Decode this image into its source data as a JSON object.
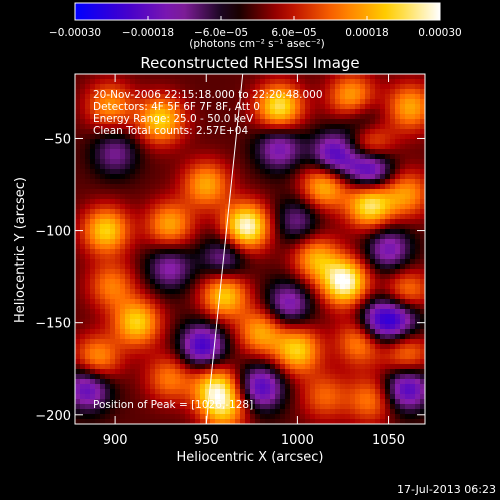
{
  "chart_data": {
    "type": "heatmap",
    "title": "Reconstructed RHESSI Image",
    "xlabel": "Heliocentric X (arcsec)",
    "ylabel": "Heliocentric Y (arcsec)",
    "xlim": [
      878,
      1070
    ],
    "ylim": [
      -205,
      -15
    ],
    "x_ticks": [
      {
        "value": 900,
        "label": "900"
      },
      {
        "value": 950,
        "label": "950"
      },
      {
        "value": 1000,
        "label": "1000"
      },
      {
        "value": 1050,
        "label": "1050"
      }
    ],
    "y_ticks": [
      {
        "value": -50,
        "label": "−50"
      },
      {
        "value": -100,
        "label": "−100"
      },
      {
        "value": -150,
        "label": "−150"
      },
      {
        "value": -200,
        "label": "−200"
      }
    ],
    "colorbar": {
      "min": -0.0003,
      "max": 0.0003,
      "units_label": "(photons cm⁻² s⁻¹ asec⁻²)",
      "ticks": [
        {
          "value": -0.0003,
          "label": "−0.00030"
        },
        {
          "value": -0.00018,
          "label": "−0.00018"
        },
        {
          "value": -6e-05,
          "label": "−6.0e−05"
        },
        {
          "value": 6e-05,
          "label": "6.0e−05"
        },
        {
          "value": 0.00018,
          "label": "0.00018"
        },
        {
          "value": 0.0003,
          "label": "0.00030"
        }
      ],
      "colors": [
        "#0000ff",
        "#4400cc",
        "#8a1fa8",
        "#000000",
        "#b00000",
        "#ff6a00",
        "#ffd000",
        "#ffffff"
      ]
    },
    "annotations": [
      "20-Nov-2006 22:15:18.000 to 22:20:48.000",
      "Detectors: 4F 5F 6F 7F 8F, Att 0",
      "Energy Range: 25.0 - 50.0 keV",
      "Clean     Total counts: 2.57E+04"
    ],
    "peak_label": "Position of Peak = [1026,-128]",
    "limb_line": [
      [
        950,
        -205
      ],
      [
        970,
        -15
      ]
    ],
    "blobs": [
      {
        "x": 897,
        "y": -32,
        "v": 0.00016
      },
      {
        "x": 925,
        "y": -40,
        "v": 0.00022
      },
      {
        "x": 990,
        "y": -33,
        "v": 0.00025
      },
      {
        "x": 1030,
        "y": -28,
        "v": 0.0002
      },
      {
        "x": 1062,
        "y": -33,
        "v": 0.00018
      },
      {
        "x": 1040,
        "y": -55,
        "v": 0.00024
      },
      {
        "x": 1015,
        "y": -75,
        "v": 0.00022
      },
      {
        "x": 1040,
        "y": -86,
        "v": 0.00026
      },
      {
        "x": 1060,
        "y": -80,
        "v": 0.00016
      },
      {
        "x": 950,
        "y": -75,
        "v": 0.00018
      },
      {
        "x": 972,
        "y": -98,
        "v": 0.0003
      },
      {
        "x": 930,
        "y": -97,
        "v": 0.00018
      },
      {
        "x": 895,
        "y": -100,
        "v": 0.00022
      },
      {
        "x": 1010,
        "y": -115,
        "v": 0.00018
      },
      {
        "x": 1026,
        "y": -128,
        "v": 0.0003
      },
      {
        "x": 1060,
        "y": -135,
        "v": 0.0002
      },
      {
        "x": 898,
        "y": -130,
        "v": 0.00014
      },
      {
        "x": 960,
        "y": -135,
        "v": 0.00022
      },
      {
        "x": 980,
        "y": -155,
        "v": 0.00018
      },
      {
        "x": 912,
        "y": -150,
        "v": 0.00022
      },
      {
        "x": 1000,
        "y": -165,
        "v": 0.00022
      },
      {
        "x": 1035,
        "y": -160,
        "v": 0.00018
      },
      {
        "x": 1060,
        "y": -168,
        "v": 0.00016
      },
      {
        "x": 890,
        "y": -170,
        "v": 0.00018
      },
      {
        "x": 930,
        "y": -180,
        "v": 0.00014
      },
      {
        "x": 955,
        "y": -185,
        "v": 0.00022
      },
      {
        "x": 960,
        "y": -197,
        "v": 0.00018
      },
      {
        "x": 1040,
        "y": -192,
        "v": 0.00014
      },
      {
        "x": 1015,
        "y": -190,
        "v": 0.00012
      },
      {
        "x": 1040,
        "y": -65,
        "v": -0.0003
      },
      {
        "x": 1020,
        "y": -60,
        "v": -0.00022
      },
      {
        "x": 990,
        "y": -55,
        "v": -0.00016
      },
      {
        "x": 1045,
        "y": -150,
        "v": -0.00022
      },
      {
        "x": 1058,
        "y": -145,
        "v": -0.00018
      },
      {
        "x": 1060,
        "y": -185,
        "v": -0.00022
      },
      {
        "x": 885,
        "y": -185,
        "v": -0.0002
      },
      {
        "x": 948,
        "y": -163,
        "v": -0.00022
      },
      {
        "x": 980,
        "y": -185,
        "v": -0.0002
      },
      {
        "x": 995,
        "y": -140,
        "v": -0.00016
      },
      {
        "x": 930,
        "y": -120,
        "v": -0.00014
      },
      {
        "x": 900,
        "y": -58,
        "v": -0.00012
      },
      {
        "x": 1050,
        "y": -110,
        "v": -0.00016
      },
      {
        "x": 960,
        "y": -115,
        "v": -0.00014
      },
      {
        "x": 1000,
        "y": -95,
        "v": -0.00012
      },
      {
        "x": 1035,
        "y": -40,
        "v": -0.00012
      }
    ]
  },
  "footer": {
    "timestamp": "17-Jul-2013 06:23"
  }
}
